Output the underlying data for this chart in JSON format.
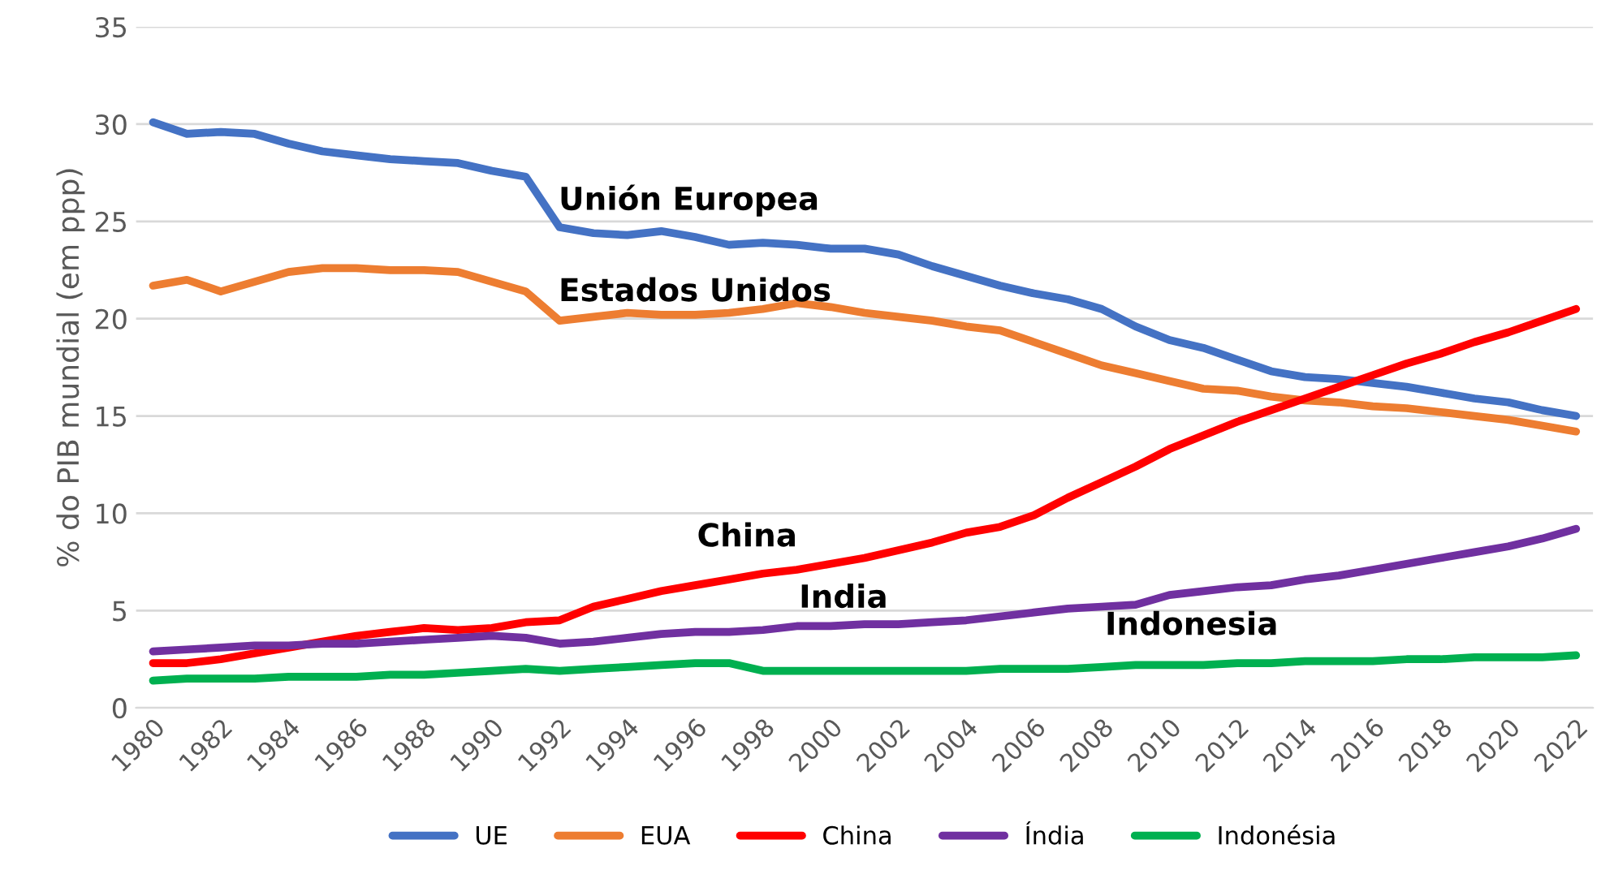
{
  "chart_data": {
    "type": "line",
    "ylabel": "% do PIB mundial (em ppp)",
    "categories": [
      "1980",
      null,
      "1982",
      null,
      "1984",
      null,
      "1986",
      null,
      "1988",
      null,
      "1990",
      null,
      "1992",
      null,
      "1994",
      null,
      "1996",
      null,
      "1998",
      null,
      "2000",
      null,
      "2002",
      null,
      "2004",
      null,
      "2006",
      null,
      "2008",
      null,
      "2010",
      null,
      "2012",
      null,
      "2014",
      null,
      "2016",
      null,
      "2018",
      null,
      "2020",
      null,
      "2022"
    ],
    "series": [
      {
        "name": "UE",
        "color": "#4472c4",
        "values": [
          30.1,
          29.5,
          29.6,
          29.5,
          29.0,
          28.6,
          28.4,
          28.2,
          28.1,
          28.0,
          27.6,
          27.3,
          24.7,
          24.4,
          24.3,
          24.5,
          24.2,
          23.8,
          23.9,
          23.8,
          23.6,
          23.6,
          23.3,
          22.7,
          22.2,
          21.7,
          21.3,
          21.0,
          20.5,
          19.6,
          18.9,
          18.5,
          17.9,
          17.3,
          17.0,
          16.9,
          16.7,
          16.5,
          16.2,
          15.9,
          15.7,
          15.3,
          15.0
        ]
      },
      {
        "name": "EUA",
        "color": "#ed7d31",
        "values": [
          21.7,
          22.0,
          21.4,
          21.9,
          22.4,
          22.6,
          22.6,
          22.5,
          22.5,
          22.4,
          21.9,
          21.4,
          19.9,
          20.1,
          20.3,
          20.2,
          20.2,
          20.3,
          20.5,
          20.8,
          20.6,
          20.3,
          20.1,
          19.9,
          19.6,
          19.4,
          18.8,
          18.2,
          17.6,
          17.2,
          16.8,
          16.4,
          16.3,
          16.0,
          15.8,
          15.7,
          15.5,
          15.4,
          15.2,
          15.0,
          14.8,
          14.5,
          14.2
        ]
      },
      {
        "name": "China",
        "color": "#ff0000",
        "values": [
          2.3,
          2.3,
          2.5,
          2.8,
          3.1,
          3.4,
          3.7,
          3.9,
          4.1,
          4.0,
          4.1,
          4.4,
          4.5,
          5.2,
          5.6,
          6.0,
          6.3,
          6.6,
          6.9,
          7.1,
          7.4,
          7.7,
          8.1,
          8.5,
          9.0,
          9.3,
          9.9,
          10.8,
          11.6,
          12.4,
          13.3,
          14.0,
          14.7,
          15.3,
          15.9,
          16.5,
          17.1,
          17.7,
          18.2,
          18.8,
          19.3,
          19.9,
          20.5
        ]
      },
      {
        "name": "Índia",
        "color": "#7030a0",
        "values": [
          2.9,
          3.0,
          3.1,
          3.2,
          3.2,
          3.3,
          3.3,
          3.4,
          3.5,
          3.6,
          3.7,
          3.6,
          3.3,
          3.4,
          3.6,
          3.8,
          3.9,
          3.9,
          4.0,
          4.2,
          4.2,
          4.3,
          4.3,
          4.4,
          4.5,
          4.7,
          4.9,
          5.1,
          5.2,
          5.3,
          5.8,
          6.0,
          6.2,
          6.3,
          6.6,
          6.8,
          7.1,
          7.4,
          7.7,
          8.0,
          8.3,
          8.7,
          9.2
        ]
      },
      {
        "name": "Indonésia",
        "color": "#00b050",
        "values": [
          1.4,
          1.5,
          1.5,
          1.5,
          1.6,
          1.6,
          1.6,
          1.7,
          1.7,
          1.8,
          1.9,
          2.0,
          1.9,
          2.0,
          2.1,
          2.2,
          2.3,
          2.3,
          1.9,
          1.9,
          1.9,
          1.9,
          1.9,
          1.9,
          1.9,
          2.0,
          2.0,
          2.0,
          2.1,
          2.2,
          2.2,
          2.2,
          2.3,
          2.3,
          2.4,
          2.4,
          2.4,
          2.5,
          2.5,
          2.6,
          2.6,
          2.6,
          2.7
        ]
      }
    ],
    "annotations": [
      "Unión Europea",
      "Estados Unidos",
      "China",
      "India",
      "Indonesia"
    ],
    "ylim": [
      0,
      35
    ],
    "yticks": [
      0,
      5,
      10,
      15,
      20,
      25,
      30,
      35
    ],
    "grid": "y",
    "legend": "bottom",
    "line_style": "solid"
  }
}
